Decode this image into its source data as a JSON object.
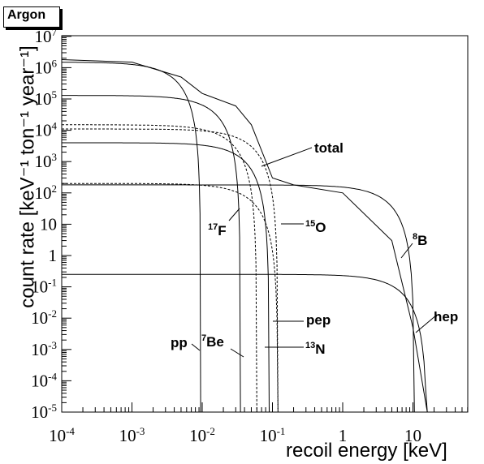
{
  "chart_data": {
    "type": "line",
    "title": "Argon",
    "xlabel": "recoil energy [keV]",
    "ylabel": "count rate [keV⁻¹ ton⁻¹ year⁻¹]",
    "x_scale": "log",
    "y_scale": "log",
    "xlim": [
      0.0001,
      60
    ],
    "ylim": [
      1e-05,
      50000000
    ],
    "x_ticks": [
      "10^-4",
      "10^-3",
      "10^-2",
      "10^-1",
      "1",
      "10"
    ],
    "y_ticks": [
      "10^-5",
      "10^-4",
      "10^-3",
      "10^-2",
      "10^-1",
      "1",
      "10",
      "10^2",
      "10^3",
      "10^4",
      "10^5",
      "10^6",
      "10^7"
    ],
    "grid": false,
    "series": [
      {
        "name": "pp",
        "style": "solid",
        "plateau": 1500000,
        "endpoint": 0.0095,
        "knee": 0.006,
        "points": [
          [
            0.0001,
            1500000
          ],
          [
            0.001,
            1350000
          ],
          [
            0.003,
            950000
          ],
          [
            0.006,
            300000
          ],
          [
            0.008,
            3000
          ],
          [
            0.0095,
            1e-05
          ]
        ]
      },
      {
        "name": "7Be",
        "style": "solid",
        "plateau": 130000,
        "endpoint": 0.035,
        "knee": 0.02,
        "points": [
          [
            0.0001,
            130000
          ],
          [
            0.003,
            120000
          ],
          [
            0.01,
            100000
          ],
          [
            0.02,
            60000
          ],
          [
            0.03,
            5000
          ],
          [
            0.035,
            1e-05
          ]
        ]
      },
      {
        "name": "pep",
        "style": "solid",
        "plateau": 4000,
        "endpoint": 0.09,
        "knee": 0.06,
        "points": [
          [
            0.0001,
            4000
          ],
          [
            0.003,
            3800
          ],
          [
            0.02,
            3300
          ],
          [
            0.05,
            1800
          ],
          [
            0.08,
            100
          ],
          [
            0.09,
            1e-05
          ]
        ]
      },
      {
        "name": "13N",
        "style": "dashed",
        "plateau": 15000,
        "endpoint": 0.06,
        "knee": 0.03,
        "points": [
          [
            0.0001,
            15000
          ],
          [
            0.003,
            13000
          ],
          [
            0.02,
            6000
          ],
          [
            0.04,
            800
          ],
          [
            0.055,
            1
          ],
          [
            0.06,
            1e-05
          ]
        ]
      },
      {
        "name": "15O",
        "style": "dashed",
        "plateau": 11000,
        "endpoint": 0.12,
        "knee": 0.06,
        "points": [
          [
            0.0001,
            11000
          ],
          [
            0.003,
            10000
          ],
          [
            0.03,
            5000
          ],
          [
            0.07,
            800
          ],
          [
            0.11,
            1
          ],
          [
            0.12,
            1e-05
          ]
        ]
      },
      {
        "name": "17F",
        "style": "dashed",
        "plateau": 200,
        "endpoint": 0.12,
        "knee": 0.06,
        "points": [
          [
            0.0001,
            200
          ],
          [
            0.003,
            190
          ],
          [
            0.03,
            100
          ],
          [
            0.07,
            15
          ],
          [
            0.11,
            0.01
          ],
          [
            0.12,
            1e-05
          ]
        ]
      },
      {
        "name": "8B",
        "style": "solid",
        "plateau": 180,
        "endpoint": 10.5,
        "knee": 5,
        "points": [
          [
            0.0001,
            180
          ],
          [
            0.1,
            170
          ],
          [
            1,
            100
          ],
          [
            3,
            20
          ],
          [
            6,
            0.3
          ],
          [
            10,
            0.002
          ],
          [
            10.5,
            1e-05
          ]
        ]
      },
      {
        "name": "hep",
        "style": "solid",
        "plateau": 0.25,
        "endpoint": 16,
        "knee": 8,
        "points": [
          [
            0.0001,
            0.25
          ],
          [
            0.1,
            0.23
          ],
          [
            1,
            0.15
          ],
          [
            5,
            0.04
          ],
          [
            10,
            0.005
          ],
          [
            15,
            0.0001
          ],
          [
            16,
            1e-05
          ]
        ]
      },
      {
        "name": "total",
        "style": "solid",
        "plateau": 1800000,
        "points": [
          [
            0.0001,
            1800000
          ],
          [
            0.001,
            1500000
          ],
          [
            0.005,
            500000
          ],
          [
            0.01,
            150000
          ],
          [
            0.03,
            60000
          ],
          [
            0.05,
            15000
          ],
          [
            0.1,
            300
          ],
          [
            0.2,
            180
          ],
          [
            1,
            100
          ],
          [
            5,
            3
          ],
          [
            10,
            0.005
          ],
          [
            16,
            1e-05
          ]
        ]
      }
    ],
    "annotations": [
      {
        "text": "total",
        "target": "total"
      },
      {
        "text": "17F",
        "target": "17F"
      },
      {
        "text": "15O",
        "target": "15O"
      },
      {
        "text": "8B",
        "target": "8B"
      },
      {
        "text": "pep",
        "target": "pep"
      },
      {
        "text": "hep",
        "target": "hep"
      },
      {
        "text": "pp",
        "target": "pp"
      },
      {
        "text": "7Be",
        "target": "7Be"
      },
      {
        "text": "13N",
        "target": "13N"
      }
    ]
  },
  "labels": {
    "total": "total",
    "f17_sup": "17",
    "f17": "F",
    "o15_sup": "15",
    "o15": "O",
    "b8_sup": "8",
    "b8": "B",
    "pep": "pep",
    "hep": "hep",
    "pp": "pp",
    "be7_sup": "7",
    "be7": "Be",
    "n13_sup": "13",
    "n13": "N"
  }
}
